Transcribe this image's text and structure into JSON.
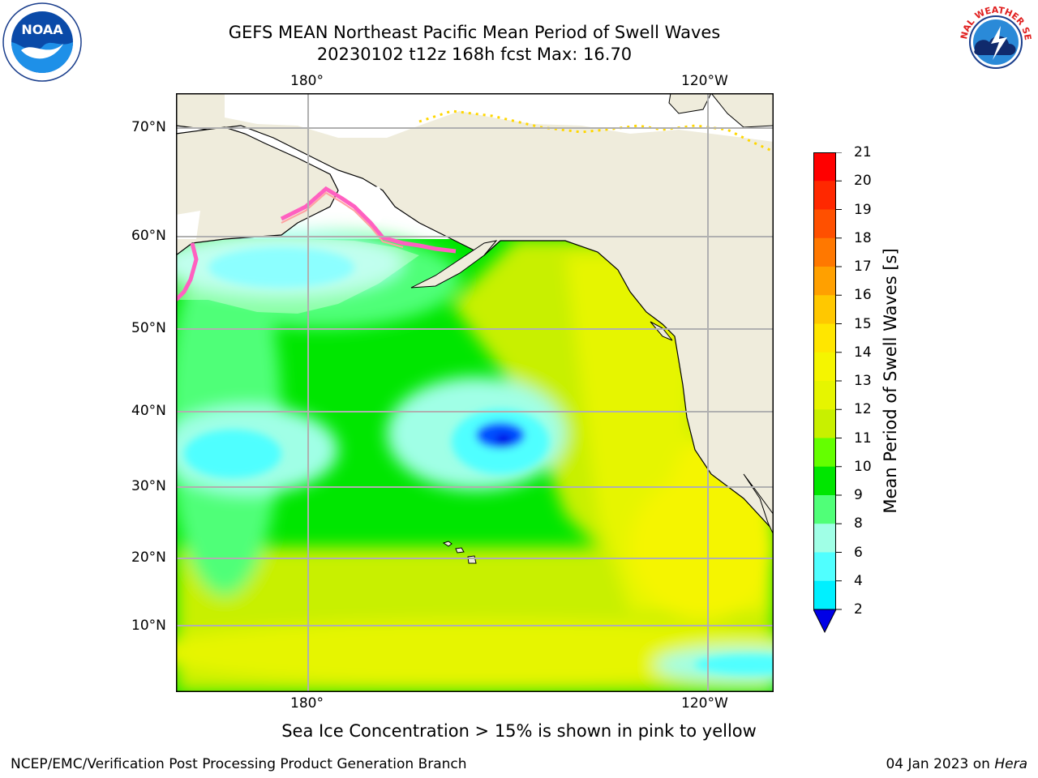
{
  "title": {
    "line1": "GEFS MEAN Northeast Pacific Mean Period of Swell Waves",
    "line2": "20230102 t12z 168h fcst   Max: 16.70"
  },
  "logos": {
    "left": {
      "name": "noaa-logo",
      "text": "NOAA"
    },
    "right": {
      "name": "nws-logo",
      "text": "NATIONAL WEATHER SERVICE"
    }
  },
  "map": {
    "top_lon_labels": [
      "180°",
      "120°W"
    ],
    "bottom_lon_labels": [
      "180°",
      "120°W"
    ],
    "lat_labels": [
      "70°N",
      "60°N",
      "50°N",
      "40°N",
      "30°N",
      "20°N",
      "10°N"
    ],
    "land_color": "#efecdc",
    "grid_color": "#b0b0b0"
  },
  "colorbar": {
    "label": "Mean Period of Swell Waves [s]",
    "ticks": [
      "21",
      "20",
      "19",
      "18",
      "17",
      "16",
      "15",
      "14",
      "13",
      "12",
      "11",
      "10",
      "9",
      "8",
      "6",
      "4",
      "2"
    ],
    "colors": [
      "#ff0000",
      "#ff2800",
      "#ff5000",
      "#ff7800",
      "#ffa000",
      "#ffc800",
      "#ffe600",
      "#f5f500",
      "#e6f500",
      "#c8f000",
      "#64ff00",
      "#00e600",
      "#50ff78",
      "#a0ffe6",
      "#50ffff",
      "#00f0ff",
      "#00a0ff",
      "#0050ff",
      "#0000e6"
    ]
  },
  "note": "Sea Ice Concentration > 15% is shown in pink to yellow",
  "footer": {
    "left": "NCEP/EMC/Verification Post Processing Product Generation Branch",
    "right_prefix": "04 Jan 2023 on ",
    "right_machine": "Hera"
  }
}
